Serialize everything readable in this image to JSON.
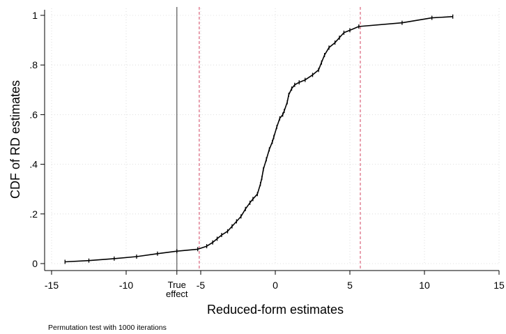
{
  "chart_data": {
    "type": "line",
    "title": "",
    "xlabel": "Reduced-form estimates",
    "ylabel": "CDF of RD estimates",
    "note": "Permutation test with 1000 iterations",
    "xlim": [
      -15,
      15
    ],
    "ylim": [
      0,
      1
    ],
    "xticks": [
      -15,
      -10,
      -5,
      0,
      5,
      10,
      15
    ],
    "xtick_labels": [
      "-15",
      "-10",
      "-5",
      "0",
      "5",
      "10",
      "15"
    ],
    "yticks": [
      0,
      0.2,
      0.4,
      0.6,
      0.8,
      1
    ],
    "ytick_labels": [
      "0",
      ".2",
      ".4",
      ".6",
      ".8",
      "1"
    ],
    "grid": true,
    "reference_lines": [
      {
        "x": -6.6,
        "style": "solid",
        "color": "#555555",
        "label_lines": [
          "True",
          "effect"
        ]
      },
      {
        "x": -5.1,
        "style": "dashed",
        "color": "#d9627a"
      },
      {
        "x": 5.7,
        "style": "dashed",
        "color": "#d9627a"
      }
    ],
    "series": [
      {
        "color": "#000000",
        "x": [
          -14.1,
          -12.5,
          -10.8,
          -9.3,
          -7.9,
          -6.6,
          -5.2,
          -4.6,
          -4.2,
          -3.9,
          -3.6,
          -3.2,
          -2.9,
          -2.6,
          -2.3,
          -2.0,
          -1.7,
          -1.5,
          -1.2,
          -1.0,
          -0.9,
          -0.8,
          -0.6,
          -0.4,
          -0.2,
          -0.1,
          0.1,
          0.3,
          0.5,
          0.6,
          0.8,
          0.9,
          1.1,
          1.3,
          1.6,
          2.0,
          2.5,
          2.9,
          3.1,
          3.3,
          3.6,
          4.0,
          4.3,
          4.6,
          5.0,
          5.6,
          8.5,
          10.5,
          11.9
        ],
        "y": [
          0.007,
          0.012,
          0.02,
          0.028,
          0.04,
          0.05,
          0.058,
          0.07,
          0.085,
          0.1,
          0.115,
          0.13,
          0.15,
          0.17,
          0.19,
          0.22,
          0.245,
          0.26,
          0.28,
          0.32,
          0.345,
          0.38,
          0.42,
          0.46,
          0.49,
          0.51,
          0.55,
          0.585,
          0.6,
          0.615,
          0.65,
          0.68,
          0.705,
          0.72,
          0.73,
          0.74,
          0.76,
          0.78,
          0.81,
          0.84,
          0.87,
          0.89,
          0.91,
          0.93,
          0.94,
          0.955,
          0.97,
          0.99,
          0.995
        ]
      }
    ]
  }
}
